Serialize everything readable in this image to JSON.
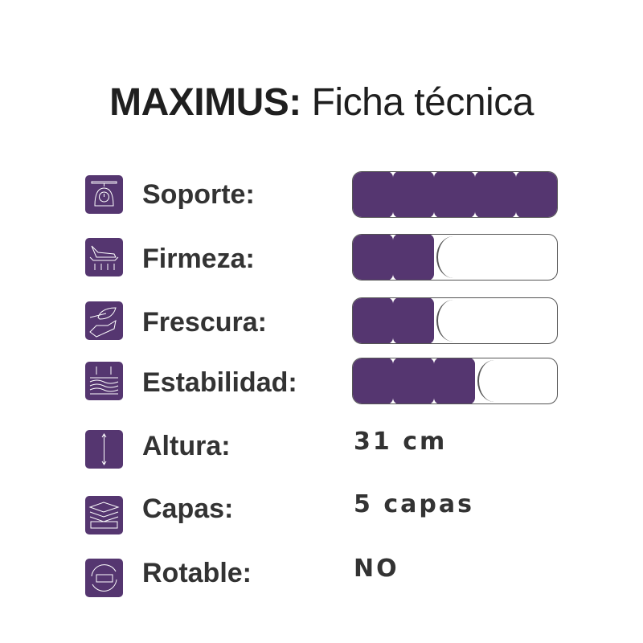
{
  "header": {
    "brand": "MAXIMUS:",
    "subtitle": "Ficha técnica"
  },
  "accent_color": "#553670",
  "ratings": [
    {
      "label": "Soporte:",
      "icon": "scale-icon",
      "level": 5,
      "max": 5
    },
    {
      "label": "Firmeza:",
      "icon": "firmness-icon",
      "level": 2,
      "max": 5
    },
    {
      "label": "Frescura:",
      "icon": "leaf-hand-icon",
      "level": 2,
      "max": 5
    },
    {
      "label": "Estabilidad:",
      "icon": "waves-icon",
      "level": 3,
      "max": 5
    }
  ],
  "specs": [
    {
      "label": "Altura:",
      "icon": "height-arrow-icon",
      "value": "31 cm"
    },
    {
      "label": "Capas:",
      "icon": "layers-icon",
      "value": "5 capas"
    },
    {
      "label": "Rotable:",
      "icon": "rotate-mattress-icon",
      "value": "NO"
    }
  ]
}
